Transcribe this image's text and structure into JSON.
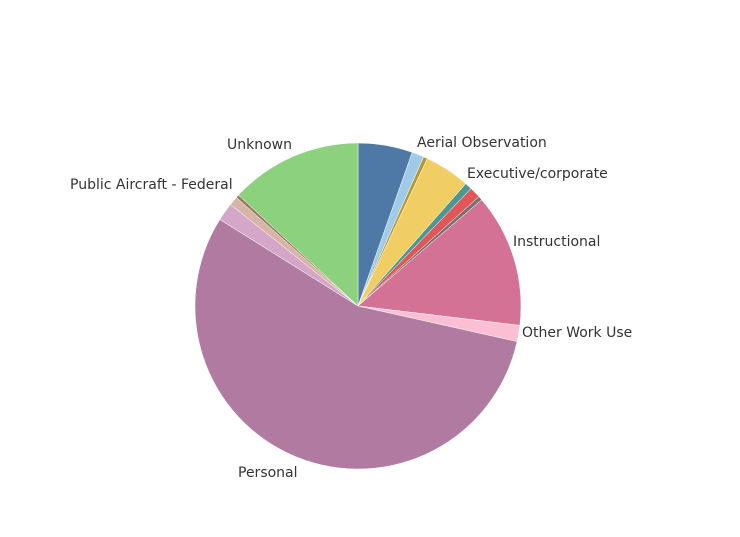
{
  "chart_data": {
    "type": "pie",
    "start_angle_deg": 0,
    "direction": "clockwise",
    "slices": [
      {
        "label": "",
        "value": 5.4,
        "color": "#4e79a7"
      },
      {
        "label": "",
        "value": 1.2,
        "color": "#a0cbe8"
      },
      {
        "label": "",
        "value": 0.4,
        "color": "#b6992d"
      },
      {
        "label": "Aerial Observation",
        "value": 4.5,
        "color": "#f1ce63"
      },
      {
        "label": "",
        "value": 0.7,
        "color": "#499894"
      },
      {
        "label": "Executive/corporate",
        "value": 1.1,
        "color": "#e15759"
      },
      {
        "label": "",
        "value": 0.4,
        "color": "#79706e"
      },
      {
        "label": "Instructional",
        "value": 13.2,
        "color": "#d37295"
      },
      {
        "label": "Other Work Use",
        "value": 1.6,
        "color": "#fabfd2"
      },
      {
        "label": "Personal",
        "value": 55.4,
        "color": "#b07aa1"
      },
      {
        "label": "",
        "value": 1.8,
        "color": "#d4a6c8"
      },
      {
        "label": "Public Aircraft - Federal",
        "value": 0.9,
        "color": "#d7b5a6"
      },
      {
        "label": "",
        "value": 0.3,
        "color": "#9d7660"
      },
      {
        "label": "Unknown",
        "value": 13.1,
        "color": "#8cd17d"
      }
    ]
  }
}
